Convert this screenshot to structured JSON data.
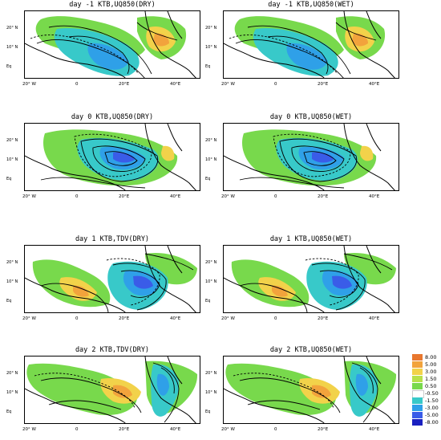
{
  "panels": [
    {
      "title": "day -1 KTB,UQ850(DRY)",
      "variant": "m1"
    },
    {
      "title": "day -1 KTB,UQ850(WET)",
      "variant": "m1"
    },
    {
      "title": "day 0 KTB,UQ850(DRY)",
      "variant": "d0"
    },
    {
      "title": "day 0 KTB,UQ850(WET)",
      "variant": "d0"
    },
    {
      "title": "day 1 KTB,TDV(DRY)",
      "variant": "d1"
    },
    {
      "title": "day 1 KTB,UQ850(WET)",
      "variant": "d1"
    },
    {
      "title": "day 2 KTB,TDV(DRY)",
      "variant": "d2"
    },
    {
      "title": "day 2 KTB,UQ850(WET)",
      "variant": "d2"
    }
  ],
  "lat_labels": [
    "20° N",
    "10° N",
    "Eq"
  ],
  "lon_labels": [
    "20° W",
    "0",
    "20°E",
    "40°E"
  ],
  "colorbar": {
    "labels": [
      "8.00",
      "5.00",
      "3.00",
      "1.50",
      "0.50",
      "-0.50",
      "-1.50",
      "-3.00",
      "-5.00",
      "-8.00"
    ],
    "colors": [
      "#e8772e",
      "#f2a33c",
      "#f2d24a",
      "#b8e04a",
      "#78d94c",
      "#ffffff",
      "#38c9c9",
      "#2fa0e8",
      "#3a5ce8",
      "#1a20c0"
    ]
  }
}
